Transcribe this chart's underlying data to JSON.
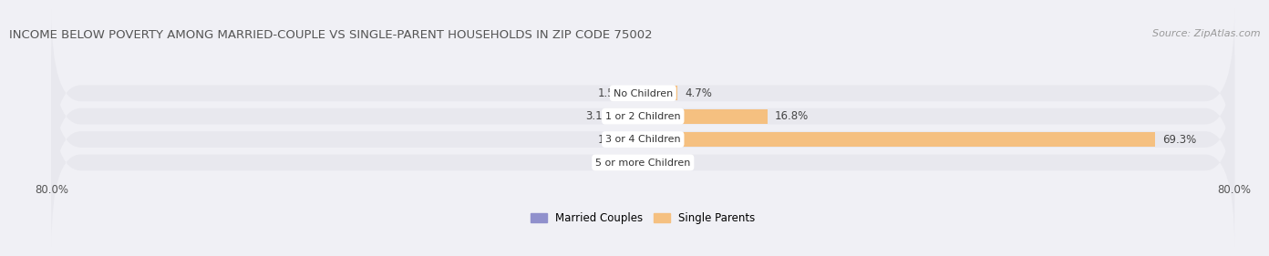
{
  "title": "INCOME BELOW POVERTY AMONG MARRIED-COUPLE VS SINGLE-PARENT HOUSEHOLDS IN ZIP CODE 75002",
  "source": "Source: ZipAtlas.com",
  "categories": [
    "No Children",
    "1 or 2 Children",
    "3 or 4 Children",
    "5 or more Children"
  ],
  "married_values": [
    1.5,
    3.1,
    1.4,
    0.0
  ],
  "single_values": [
    4.7,
    16.8,
    69.3,
    0.0
  ],
  "married_color": "#9090cc",
  "single_color": "#f5c080",
  "bar_bg_color": "#e8e8ee",
  "axis_min": -80.0,
  "axis_max": 80.0,
  "axis_tick_labels": [
    "80.0%",
    "80.0%"
  ],
  "legend_married": "Married Couples",
  "legend_single": "Single Parents",
  "title_fontsize": 9.5,
  "source_fontsize": 8.0,
  "label_fontsize": 8.5,
  "category_fontsize": 8.0,
  "tick_fontsize": 8.5,
  "bg_color": "#f0f0f5"
}
